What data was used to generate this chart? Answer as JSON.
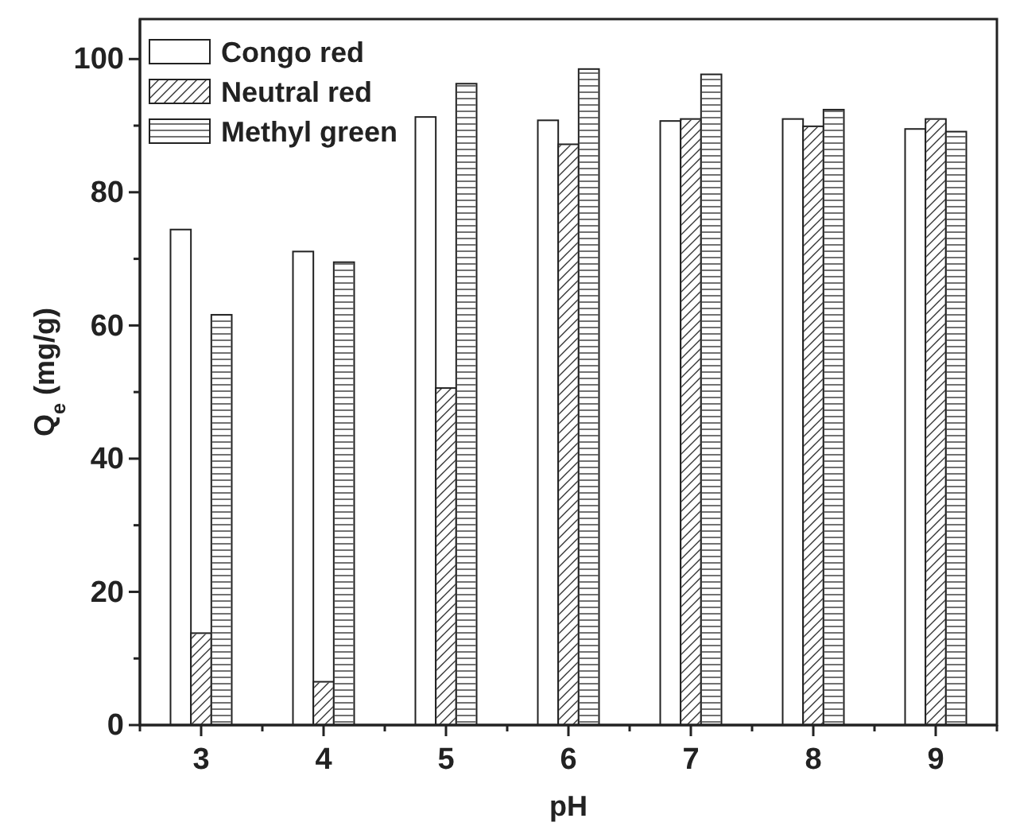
{
  "chart_data": {
    "type": "bar",
    "xlabel": "pH",
    "ylabel": "Q$_{e}$ (mg/g)",
    "categories": [
      "3",
      "4",
      "5",
      "6",
      "7",
      "8",
      "9"
    ],
    "series": [
      {
        "name": "Congo red",
        "color": "#ffffff",
        "values": [
          74.4,
          71.1,
          91.3,
          90.8,
          90.7,
          91.0,
          89.5
        ]
      },
      {
        "name": "Neutral red",
        "color": "#ffffff",
        "values": [
          13.8,
          6.5,
          50.6,
          87.2,
          91.0,
          89.9,
          91.0
        ]
      },
      {
        "name": "Methyl green",
        "color": "#ffffff",
        "values": [
          61.6,
          69.5,
          96.3,
          98.5,
          97.7,
          92.4,
          89.1
        ]
      }
    ],
    "ylim": [
      0,
      106
    ],
    "yticks": [
      0,
      {
        "value": 10,
        "label": null
      },
      20,
      {
        "value": 30,
        "label": null
      },
      40,
      {
        "value": 50,
        "label": null
      },
      60,
      {
        "value": 70,
        "label": null
      },
      80,
      {
        "value": 90,
        "label": null
      },
      100
    ],
    "legend": "top left",
    "grid": false
  }
}
